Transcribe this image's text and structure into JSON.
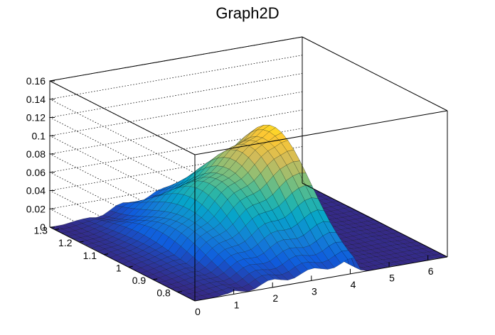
{
  "chart_data": {
    "type": "surface",
    "title": "Graph2D",
    "xlim": [
      0,
      6.5
    ],
    "ylim": [
      0.73,
      1.32
    ],
    "zlim": [
      0,
      0.16
    ],
    "x_ticks": [
      "0",
      "1",
      "2",
      "3",
      "4",
      "5",
      "6"
    ],
    "y_ticks": [
      "0.8",
      "0.9",
      "1",
      "1.1",
      "1.2",
      "1.3"
    ],
    "z_ticks": [
      "0",
      "0.02",
      "0.04",
      "0.06",
      "0.08",
      "0.1",
      "0.12",
      "0.14",
      "0.16"
    ],
    "grid": true,
    "palette": "kBird",
    "colors": [
      "#352a87",
      "#0f5cdd",
      "#1481d6",
      "#06a4ca",
      "#2eb7a4",
      "#87bf77",
      "#d1bb59",
      "#fec832",
      "#f9fb0e"
    ],
    "surface_profile": {
      "x": [
        0,
        0.5,
        1.0,
        1.5,
        2.0,
        2.5,
        3.0,
        3.5,
        3.8,
        4.0,
        4.1,
        4.2,
        4.3,
        4.5,
        5.0,
        6.5
      ],
      "peak_z": [
        0.0,
        0.004,
        0.012,
        0.03,
        0.05,
        0.068,
        0.085,
        0.1,
        0.11,
        0.118,
        0.12,
        0.06,
        0.0,
        0.0,
        0.0,
        0.0
      ],
      "y_center": 1.05,
      "y_width": 0.22
    }
  }
}
